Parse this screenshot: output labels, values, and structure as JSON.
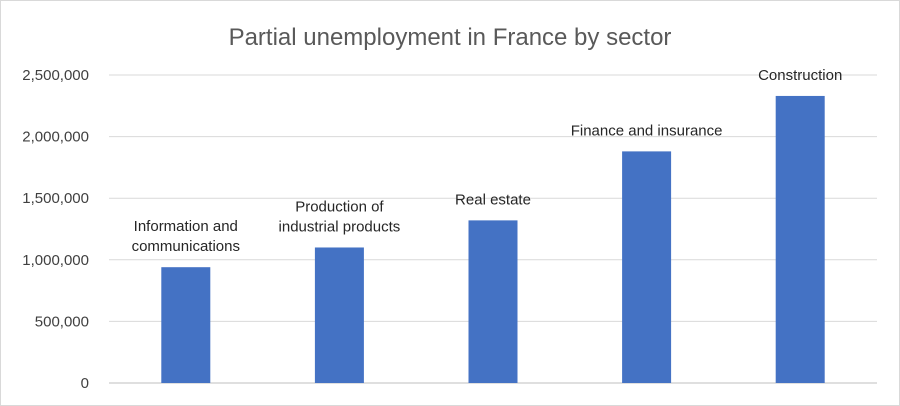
{
  "chart_data": {
    "type": "bar",
    "title": "Partial unemployment in France by sector",
    "xlabel": "",
    "ylabel": "",
    "categories": [
      [
        "Information and",
        "communications"
      ],
      [
        "Production of",
        "industrial products"
      ],
      [
        "Real estate"
      ],
      [
        "Finance and insurance"
      ],
      [
        "Construction"
      ]
    ],
    "values": [
      940000,
      1100000,
      1320000,
      1880000,
      2330000
    ],
    "ylim": [
      0,
      2500000
    ],
    "yticks": [
      0,
      500000,
      1000000,
      1500000,
      2000000,
      2500000
    ],
    "ytick_labels": [
      "0",
      "500,000",
      "1,000,000",
      "1,500,000",
      "2,000,000",
      "2,500,000"
    ],
    "grid": true,
    "legend": "none",
    "bar_color": "#4472c4"
  }
}
